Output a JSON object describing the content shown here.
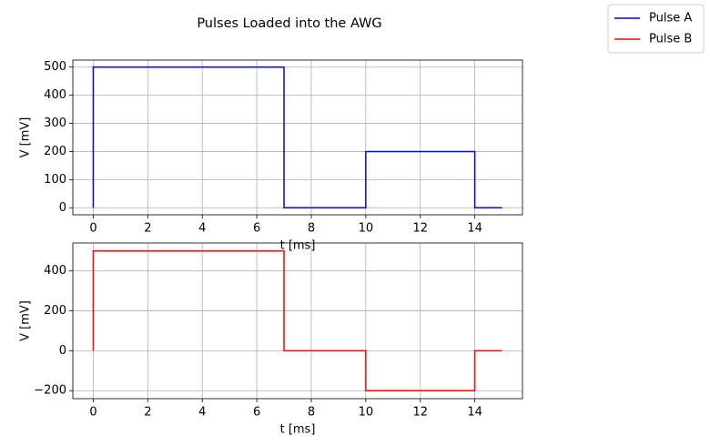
{
  "title": "Pulses Loaded into the AWG",
  "chart_data": [
    {
      "type": "line",
      "xlabel": "t  [ms]",
      "ylabel": "V  [mV]",
      "x": [
        0,
        0,
        7,
        7,
        10,
        10,
        14,
        14,
        15
      ],
      "series": [
        {
          "name": "Pulse A",
          "color": "#0000ff",
          "values": [
            0,
            500,
            500,
            0,
            0,
            200,
            200,
            0,
            0
          ]
        }
      ],
      "xlim": [
        -0.75,
        15.75
      ],
      "xticks": [
        0,
        2,
        4,
        6,
        8,
        10,
        12,
        14
      ],
      "ylim": [
        -25,
        525
      ],
      "yticks": [
        0,
        100,
        200,
        300,
        400,
        500
      ],
      "grid": true
    },
    {
      "type": "line",
      "xlabel": "t  [ms]",
      "ylabel": "V  [mV]",
      "x": [
        0,
        0,
        7,
        7,
        10,
        10,
        14,
        14,
        15
      ],
      "series": [
        {
          "name": "Pulse B",
          "color": "#ff0000",
          "values": [
            0,
            500,
            500,
            0,
            0,
            -200,
            -200,
            0,
            0
          ]
        }
      ],
      "xlim": [
        -0.75,
        15.75
      ],
      "xticks": [
        0,
        2,
        4,
        6,
        8,
        10,
        12,
        14
      ],
      "ylim": [
        -240,
        540
      ],
      "yticks": [
        {
          "value": -200,
          "label": "−200"
        },
        0,
        200,
        400
      ],
      "grid": true
    }
  ]
}
